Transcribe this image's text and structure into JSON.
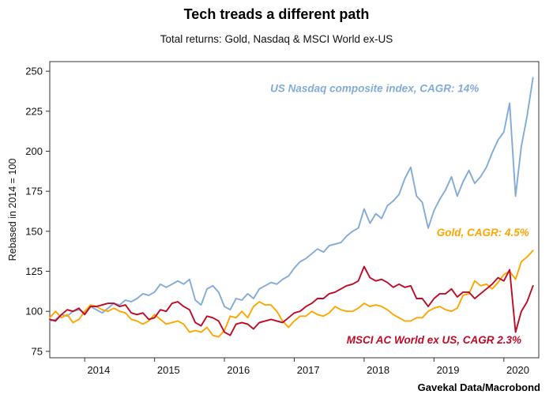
{
  "title": "Tech treads a different path",
  "subtitle": "Total returns:  Gold, Nasdaq & MSCI World ex-US",
  "source": "Gavekal Data/Macrobond",
  "y_axis_label": "Rebased in 2014 = 100",
  "chart_data": {
    "type": "line",
    "grid": false,
    "xlim": [
      2013.5,
      2020.5
    ],
    "ylim": [
      71,
      256
    ],
    "y_ticks": [
      75,
      100,
      125,
      150,
      175,
      200,
      225,
      250
    ],
    "x_ticks": [
      2014,
      2015,
      2016,
      2017,
      2018,
      2019,
      2020
    ],
    "x_tick_label_offset": 0.2,
    "x": [
      2013.5,
      2013.583,
      2013.667,
      2013.75,
      2013.833,
      2013.917,
      2014,
      2014.083,
      2014.167,
      2014.25,
      2014.333,
      2014.417,
      2014.5,
      2014.583,
      2014.667,
      2014.75,
      2014.833,
      2014.917,
      2015,
      2015.083,
      2015.167,
      2015.25,
      2015.333,
      2015.417,
      2015.5,
      2015.583,
      2015.667,
      2015.75,
      2015.833,
      2015.917,
      2016,
      2016.083,
      2016.167,
      2016.25,
      2016.333,
      2016.417,
      2016.5,
      2016.583,
      2016.667,
      2016.75,
      2016.833,
      2016.917,
      2017,
      2017.083,
      2017.167,
      2017.25,
      2017.333,
      2017.417,
      2017.5,
      2017.583,
      2017.667,
      2017.75,
      2017.833,
      2017.917,
      2018,
      2018.083,
      2018.167,
      2018.25,
      2018.333,
      2018.417,
      2018.5,
      2018.583,
      2018.667,
      2018.75,
      2018.833,
      2018.917,
      2019,
      2019.083,
      2019.167,
      2019.25,
      2019.333,
      2019.417,
      2019.5,
      2019.583,
      2019.667,
      2019.75,
      2019.833,
      2019.917,
      2020,
      2020.083,
      2020.167,
      2020.25,
      2020.333,
      2020.417
    ],
    "series": [
      {
        "name": "US Nasdaq composite index",
        "cagr": "14%",
        "color": "#82ABD9",
        "values": [
          94,
          95,
          98,
          97,
          100,
          101,
          99,
          103,
          101,
          99,
          102,
          105,
          104,
          107,
          106,
          108,
          111,
          110,
          112,
          117,
          115,
          117,
          119,
          117,
          120,
          107,
          104,
          114,
          116,
          112,
          103,
          101,
          108,
          107,
          111,
          108,
          114,
          116,
          118,
          117,
          120,
          122,
          127,
          131,
          133,
          136,
          139,
          137,
          141,
          142,
          143,
          147,
          150,
          152,
          164,
          155,
          161,
          158,
          166,
          169,
          173,
          183,
          190,
          172,
          168,
          152,
          163,
          170,
          176,
          184,
          172,
          181,
          188,
          180,
          184,
          190,
          199,
          207,
          212,
          230,
          172,
          203,
          222,
          246
        ]
      },
      {
        "name": "Gold",
        "cagr": "4.5%",
        "color": "#FFA600",
        "values": [
          96,
          100,
          96,
          98,
          93,
          95,
          100,
          104,
          103,
          101,
          100,
          102,
          100,
          99,
          95,
          94,
          92,
          94,
          98,
          95,
          92,
          93,
          94,
          92,
          87,
          88,
          87,
          90,
          85,
          84,
          88,
          97,
          96,
          100,
          96,
          103,
          106,
          104,
          104,
          100,
          94,
          90,
          94,
          97,
          97,
          100,
          98,
          97,
          99,
          103,
          101,
          100,
          100,
          102,
          105,
          103,
          104,
          103,
          101,
          98,
          96,
          94,
          94,
          96,
          96,
          100,
          102,
          103,
          101,
          100,
          102,
          110,
          111,
          119,
          116,
          117,
          114,
          118,
          123,
          125,
          120,
          131,
          134,
          138
        ]
      },
      {
        "name": "MSCI AC World ex US",
        "cagr": "2.3%",
        "color": "#C00A26",
        "values": [
          95,
          94,
          98,
          101,
          100,
          102,
          98,
          103,
          103,
          104,
          105,
          105,
          103,
          104,
          99,
          98,
          99,
          95,
          96,
          101,
          100,
          105,
          106,
          103,
          101,
          93,
          91,
          97,
          96,
          94,
          87,
          85,
          92,
          93,
          92,
          89,
          93,
          94,
          95,
          94,
          93,
          96,
          99,
          100,
          103,
          105,
          108,
          108,
          111,
          112,
          114,
          116,
          117,
          119,
          128,
          121,
          119,
          120,
          118,
          115,
          117,
          115,
          116,
          108,
          108,
          103,
          108,
          111,
          111,
          114,
          109,
          112,
          112,
          108,
          111,
          114,
          117,
          121,
          119,
          126,
          87,
          100,
          106,
          116
        ]
      }
    ],
    "annotations": [
      {
        "text": "US Nasdaq composite index, CAGR: 14%",
        "x": 2018.15,
        "y": 237,
        "color": "#82ABD9"
      },
      {
        "text": "Gold, CAGR: 4.5%",
        "x": 2019.7,
        "y": 147,
        "color": "#FFA600"
      },
      {
        "text": "MSCI AC World ex US, CAGR 2.3%",
        "x": 2019.0,
        "y": 80,
        "color": "#C00A26"
      }
    ]
  }
}
